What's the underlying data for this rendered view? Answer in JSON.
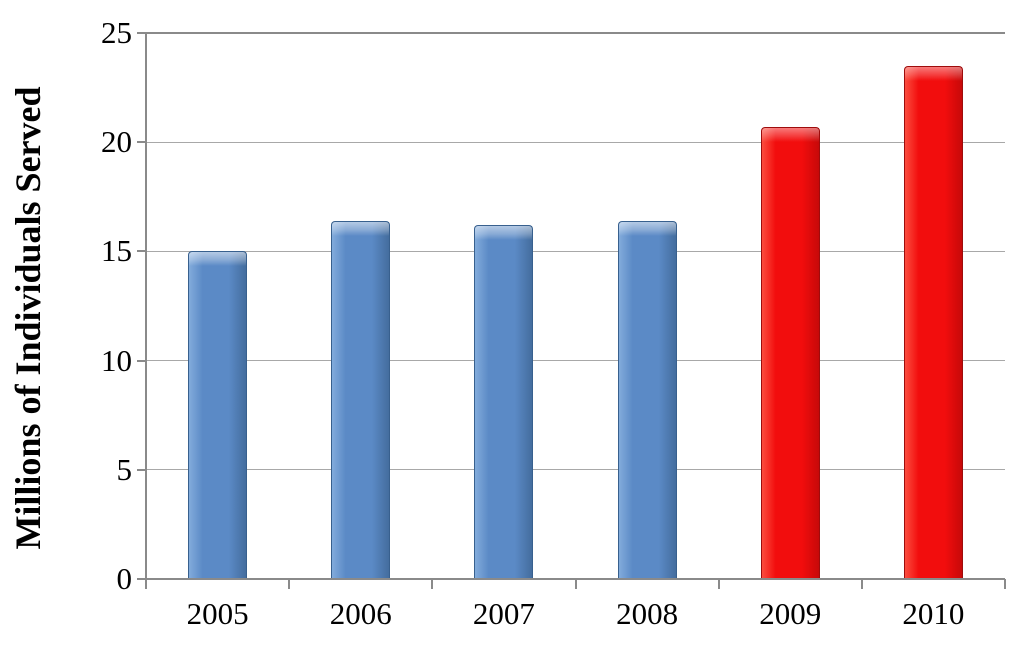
{
  "chart_data": {
    "type": "bar",
    "title": "",
    "xlabel": "",
    "ylabel": "Millions of Individuals Served",
    "categories": [
      "2005",
      "2006",
      "2007",
      "2008",
      "2009",
      "2010"
    ],
    "values": [
      15.0,
      16.4,
      16.2,
      16.4,
      20.7,
      23.5
    ],
    "bar_color_names": [
      "blue",
      "blue",
      "blue",
      "blue",
      "red",
      "red"
    ],
    "yticks": [
      0,
      5,
      10,
      15,
      20,
      25
    ],
    "ylim": [
      0,
      25
    ],
    "grid": true,
    "legend": false,
    "colors": {
      "blue_fill": "#5b8ac6",
      "blue_highlight": "#82abdb",
      "blue_shadow": "#446d9e",
      "blue_border": "#38608e",
      "red_fill": "#f20d0d",
      "red_highlight": "#fb4c3e",
      "red_shadow": "#c70909",
      "red_border": "#9e0c0c",
      "gridline": "#a8a8a8",
      "axis": "#8a8a8a",
      "text": "#000000"
    }
  }
}
